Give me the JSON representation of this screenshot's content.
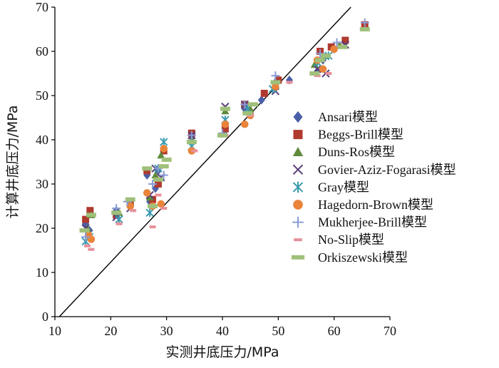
{
  "chart_data": {
    "type": "scatter",
    "xlabel": "实测井底压力/MPa",
    "ylabel": "计算井底压力/MPa",
    "xlim": [
      10,
      70
    ],
    "ylim": [
      0,
      70
    ],
    "xticks": [
      "10",
      "20",
      "30",
      "40",
      "50",
      "60",
      "70"
    ],
    "yticks": [
      "0",
      "10",
      "20",
      "30",
      "40",
      "50",
      "60",
      "70"
    ],
    "legend_position": "right",
    "grid": false,
    "reference_line": {
      "x": [
        10.8,
        63
      ],
      "y": [
        0,
        70
      ]
    },
    "series": [
      {
        "name": "Ansari模型",
        "marker": "diamond",
        "color": "#4a5fa8",
        "x": [
          15.5,
          16.2,
          21.0,
          23.5,
          26.5,
          27.0,
          28.0,
          28.5,
          29.5,
          34.5,
          40.5,
          44.0,
          45.0,
          47.0,
          49.5,
          52.0,
          57.0,
          58.0,
          60.0,
          62.0,
          65.5
        ],
        "y": [
          21.0,
          19.5,
          24.0,
          26.0,
          32.0,
          26.0,
          29.0,
          33.0,
          38.0,
          40.5,
          42.0,
          47.0,
          46.0,
          49.0,
          53.0,
          53.5,
          55.5,
          58.0,
          60.5,
          62.0,
          66.0
        ]
      },
      {
        "name": "Beggs-Brill模型",
        "marker": "square",
        "color": "#b03a2e",
        "x": [
          15.5,
          16.3,
          21.0,
          23.5,
          26.5,
          27.5,
          28.5,
          29.5,
          34.5,
          40.5,
          44.0,
          47.5,
          50.0,
          57.5,
          59.5,
          62.0,
          65.5
        ],
        "y": [
          22.0,
          24.0,
          23.0,
          25.5,
          33.0,
          26.5,
          30.0,
          37.5,
          41.5,
          42.5,
          48.0,
          50.5,
          53.5,
          60.0,
          61.0,
          62.5,
          66.0
        ]
      },
      {
        "name": "Duns-Ros模型",
        "marker": "triangle",
        "color": "#5f8a3a",
        "x": [
          15.8,
          16.5,
          21.5,
          27.0,
          28.0,
          29.0,
          34.5,
          40.5,
          45.0,
          49.5,
          56.5,
          58.5,
          61.0
        ],
        "y": [
          20.0,
          23.0,
          23.5,
          27.0,
          32.0,
          36.5,
          40.0,
          46.5,
          47.0,
          52.0,
          57.0,
          59.0,
          61.5
        ]
      },
      {
        "name": "Govier-Aziz-Fogarasi模型",
        "marker": "x",
        "color": "#5a3f7a",
        "x": [
          15.5,
          21.0,
          23.5,
          27.0,
          28.0,
          29.0,
          34.5,
          40.5,
          44.0,
          49.5,
          57.0,
          58.5,
          62.0
        ],
        "y": [
          20.0,
          22.5,
          24.5,
          27.5,
          33.5,
          31.5,
          41.0,
          47.5,
          48.0,
          51.0,
          56.0,
          55.0,
          61.5
        ]
      },
      {
        "name": "Gray模型",
        "marker": "asterisk",
        "color": "#3a9ab0",
        "x": [
          15.5,
          16.2,
          21.5,
          27.0,
          28.5,
          29.5,
          34.5,
          40.5,
          44.5,
          49.0,
          57.0,
          59.0
        ],
        "y": [
          17.0,
          18.0,
          22.0,
          23.5,
          33.5,
          39.5,
          38.5,
          44.5,
          47.0,
          51.5,
          57.5,
          59.0
        ]
      },
      {
        "name": "Hagedorn-Brown模型",
        "marker": "circle",
        "color": "#e9843a",
        "x": [
          16.0,
          16.5,
          23.5,
          26.5,
          27.5,
          29.0,
          29.5,
          34.5,
          40.5,
          44.0,
          45.0,
          49.5,
          57.0,
          58.0,
          60.0
        ],
        "y": [
          18.5,
          17.5,
          25.0,
          28.0,
          25.0,
          25.5,
          38.0,
          37.5,
          43.5,
          43.5,
          45.5,
          52.0,
          58.0,
          56.0,
          60.5
        ]
      },
      {
        "name": "Mukherjee-Brill模型",
        "marker": "plus",
        "color": "#8a9ad6",
        "x": [
          15.5,
          21.0,
          23.0,
          27.5,
          28.5,
          29.5,
          34.5,
          40.0,
          44.0,
          49.5,
          57.5,
          60.5,
          65.5
        ],
        "y": [
          18.0,
          24.5,
          26.0,
          30.0,
          33.5,
          32.0,
          41.0,
          41.5,
          48.0,
          54.5,
          59.5,
          62.0,
          66.5
        ]
      },
      {
        "name": "No-Slip模型",
        "marker": "dash",
        "color": "#e8909a",
        "x": [
          15.8,
          16.5,
          21.5,
          24.0,
          27.5,
          28.5,
          29.5,
          35.0,
          40.5,
          45.0,
          52.0,
          57.0,
          59.0
        ],
        "y": [
          16.0,
          15.2,
          21.0,
          24.0,
          20.3,
          27.5,
          24.5,
          37.5,
          41.0,
          45.5,
          53.0,
          54.5,
          55.0
        ]
      },
      {
        "name": "Orkiszewski模型",
        "marker": "bar",
        "color": "#9fc07a",
        "x": [
          15.3,
          16.5,
          21.0,
          23.5,
          26.5,
          27.5,
          28.5,
          29.5,
          30.0,
          34.5,
          40.0,
          40.5,
          44.5,
          45.5,
          49.5,
          56.5,
          57.5,
          58.5,
          61.5,
          65.5
        ],
        "y": [
          19.5,
          23.0,
          23.5,
          26.5,
          33.5,
          25.0,
          31.0,
          34.0,
          35.5,
          39.5,
          41.0,
          47.0,
          46.0,
          48.0,
          53.0,
          55.0,
          58.0,
          59.0,
          61.0,
          65.0
        ]
      }
    ]
  }
}
